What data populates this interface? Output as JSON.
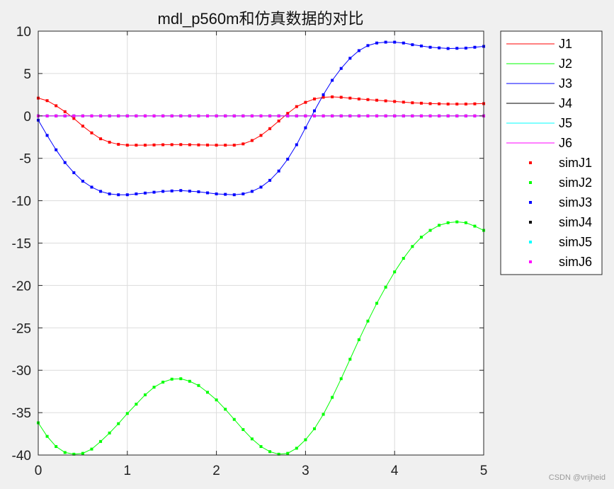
{
  "watermark": "CSDN @vrijheid",
  "chart_data": {
    "type": "line",
    "title": "mdl_p560m和仿真数据的对比",
    "xlabel": "",
    "ylabel": "",
    "xlim": [
      0,
      5
    ],
    "ylim": [
      -40,
      10
    ],
    "xticks": [
      0,
      1,
      2,
      3,
      4,
      5
    ],
    "yticks": [
      10,
      5,
      0,
      -5,
      -10,
      -15,
      -20,
      -25,
      -30,
      -35,
      -40
    ],
    "grid": true,
    "legend": {
      "position": "outside-right-top"
    },
    "series": [
      {
        "name": "J1",
        "style": "line",
        "color": "#ff0000",
        "x": [
          0,
          0.1,
          0.2,
          0.3,
          0.4,
          0.5,
          0.6,
          0.7,
          0.8,
          0.9,
          1.0,
          1.2,
          1.4,
          1.6,
          1.8,
          2.0,
          2.2,
          2.3,
          2.4,
          2.5,
          2.6,
          2.7,
          2.8,
          2.9,
          3.0,
          3.1,
          3.2,
          3.3,
          3.4,
          3.6,
          3.8,
          4.0,
          4.2,
          4.4,
          4.6,
          4.8,
          5.0
        ],
        "y": [
          2.1,
          1.8,
          1.2,
          0.5,
          -0.3,
          -1.2,
          -2.0,
          -2.7,
          -3.1,
          -3.35,
          -3.45,
          -3.45,
          -3.4,
          -3.38,
          -3.42,
          -3.45,
          -3.45,
          -3.3,
          -2.9,
          -2.3,
          -1.5,
          -0.6,
          0.3,
          1.1,
          1.6,
          2.0,
          2.2,
          2.25,
          2.2,
          2.0,
          1.85,
          1.7,
          1.55,
          1.45,
          1.4,
          1.4,
          1.45
        ]
      },
      {
        "name": "J2",
        "style": "line",
        "color": "#00ff00",
        "x": [
          0,
          0.1,
          0.2,
          0.3,
          0.4,
          0.5,
          0.6,
          0.7,
          0.8,
          0.9,
          1.0,
          1.1,
          1.2,
          1.3,
          1.4,
          1.5,
          1.6,
          1.7,
          1.8,
          1.9,
          2.0,
          2.1,
          2.2,
          2.3,
          2.4,
          2.5,
          2.6,
          2.7,
          2.8,
          2.9,
          3.0,
          3.1,
          3.2,
          3.3,
          3.4,
          3.5,
          3.6,
          3.7,
          3.8,
          3.9,
          4.0,
          4.1,
          4.2,
          4.3,
          4.4,
          4.5,
          4.6,
          4.7,
          4.8,
          4.9,
          5.0
        ],
        "y": [
          -36.2,
          -37.8,
          -39.0,
          -39.7,
          -39.9,
          -39.8,
          -39.3,
          -38.4,
          -37.4,
          -36.3,
          -35.1,
          -34.0,
          -32.9,
          -32.0,
          -31.4,
          -31.05,
          -31.0,
          -31.3,
          -31.8,
          -32.6,
          -33.5,
          -34.6,
          -35.8,
          -37.0,
          -38.1,
          -39.0,
          -39.6,
          -39.9,
          -39.8,
          -39.2,
          -38.2,
          -36.9,
          -35.2,
          -33.2,
          -31.0,
          -28.7,
          -26.4,
          -24.2,
          -22.1,
          -20.2,
          -18.4,
          -16.8,
          -15.4,
          -14.3,
          -13.5,
          -12.9,
          -12.6,
          -12.5,
          -12.6,
          -13.0,
          -13.5
        ]
      },
      {
        "name": "J3",
        "style": "line",
        "color": "#0000ff",
        "x": [
          0,
          0.1,
          0.2,
          0.3,
          0.4,
          0.5,
          0.6,
          0.7,
          0.8,
          0.9,
          1.0,
          1.2,
          1.4,
          1.6,
          1.8,
          2.0,
          2.2,
          2.3,
          2.4,
          2.5,
          2.6,
          2.7,
          2.8,
          2.9,
          3.0,
          3.1,
          3.2,
          3.3,
          3.4,
          3.5,
          3.6,
          3.7,
          3.8,
          3.9,
          4.0,
          4.1,
          4.2,
          4.4,
          4.6,
          4.8,
          5.0
        ],
        "y": [
          -0.5,
          -2.3,
          -4.0,
          -5.5,
          -6.7,
          -7.7,
          -8.4,
          -8.9,
          -9.2,
          -9.3,
          -9.3,
          -9.1,
          -8.9,
          -8.8,
          -8.95,
          -9.2,
          -9.3,
          -9.2,
          -8.9,
          -8.4,
          -7.6,
          -6.5,
          -5.1,
          -3.4,
          -1.4,
          0.6,
          2.5,
          4.2,
          5.6,
          6.8,
          7.7,
          8.3,
          8.6,
          8.7,
          8.7,
          8.6,
          8.4,
          8.1,
          7.95,
          8.0,
          8.2
        ]
      },
      {
        "name": "J4",
        "style": "line",
        "color": "#000000",
        "x": [
          0,
          5
        ],
        "y": [
          0,
          0
        ]
      },
      {
        "name": "J5",
        "style": "line",
        "color": "#00ffff",
        "x": [
          0,
          5
        ],
        "y": [
          0,
          0
        ]
      },
      {
        "name": "J6",
        "style": "line",
        "color": "#ff00ff",
        "x": [
          0,
          5
        ],
        "y": [
          0,
          0
        ]
      },
      {
        "name": "simJ1",
        "style": "marker",
        "color": "#ff0000",
        "ref": "J1"
      },
      {
        "name": "simJ2",
        "style": "marker",
        "color": "#00ff00",
        "ref": "J2"
      },
      {
        "name": "simJ3",
        "style": "marker",
        "color": "#0000ff",
        "ref": "J3"
      },
      {
        "name": "simJ4",
        "style": "marker",
        "color": "#000000",
        "ref": "J4"
      },
      {
        "name": "simJ5",
        "style": "marker",
        "color": "#00ffff",
        "ref": "J5"
      },
      {
        "name": "simJ6",
        "style": "marker",
        "color": "#ff00ff",
        "ref": "J6"
      }
    ]
  }
}
